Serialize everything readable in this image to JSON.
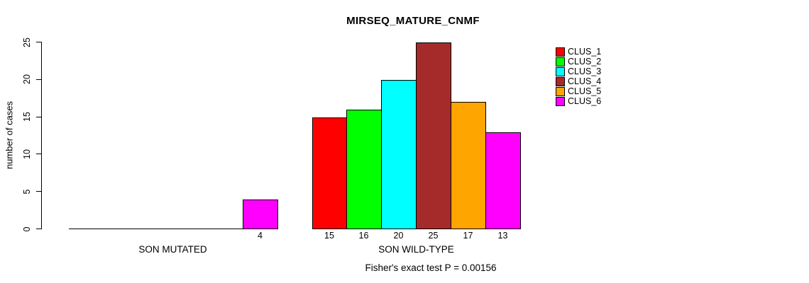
{
  "chart_data": {
    "type": "bar",
    "title": "MIRSEQ_MATURE_CNMF",
    "ylabel": "number of cases",
    "xlabel": "",
    "footnote": "Fisher's exact test P = 0.00156",
    "ylim": [
      0,
      25
    ],
    "yticks": [
      0,
      5,
      10,
      15,
      20,
      25
    ],
    "grid": false,
    "legend_position": "right-outside",
    "bar_value_labels_shown": true,
    "series": [
      {
        "name": "CLUS_1",
        "color": "#FF0000"
      },
      {
        "name": "CLUS_2",
        "color": "#00FF00"
      },
      {
        "name": "CLUS_3",
        "color": "#00FFFF"
      },
      {
        "name": "CLUS_4",
        "color": "#A52A2A"
      },
      {
        "name": "CLUS_5",
        "color": "#FFA500"
      },
      {
        "name": "CLUS_6",
        "color": "#FF00FF"
      }
    ],
    "groups": [
      {
        "label": "SON MUTATED",
        "values": [
          0,
          0,
          0,
          0,
          0,
          4
        ]
      },
      {
        "label": "SON WILD-TYPE",
        "values": [
          15,
          16,
          20,
          25,
          17,
          13
        ]
      }
    ]
  }
}
